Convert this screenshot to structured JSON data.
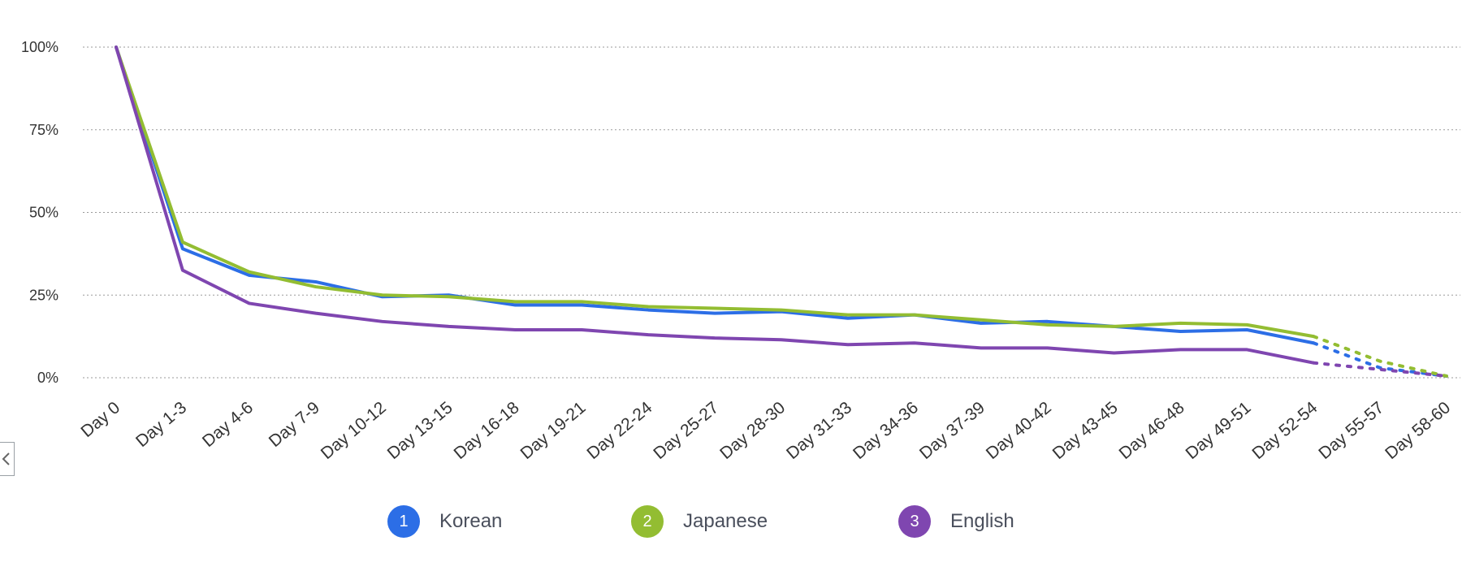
{
  "chart_data": {
    "type": "line",
    "title": "",
    "xlabel": "",
    "ylabel": "",
    "ylim": [
      0,
      100
    ],
    "yticks": [
      "0%",
      "25%",
      "50%",
      "75%",
      "100%"
    ],
    "ytick_values": [
      0,
      25,
      50,
      75,
      100
    ],
    "grid": "horizontal-dotted",
    "legend_position": "bottom",
    "categories": [
      "Day 0",
      "Day 1-3",
      "Day 4-6",
      "Day 7-9",
      "Day 10-12",
      "Day 13-15",
      "Day 16-18",
      "Day 19-21",
      "Day 22-24",
      "Day 25-27",
      "Day 28-30",
      "Day 31-33",
      "Day 34-36",
      "Day 37-39",
      "Day 40-42",
      "Day 43-45",
      "Day 46-48",
      "Day 49-51",
      "Day 52-54",
      "Day 55-57",
      "Day 58-60"
    ],
    "incomplete_from_index": 18,
    "series": [
      {
        "name": "Korean",
        "badge": "1",
        "color": "#2c6ee6",
        "values": [
          100,
          39,
          31,
          29,
          24.5,
          25,
          22,
          22,
          20.5,
          19.5,
          20,
          18,
          19,
          16.5,
          17,
          15.5,
          14,
          14.5,
          10.5,
          3,
          0.5
        ]
      },
      {
        "name": "Japanese",
        "badge": "2",
        "color": "#93bd32",
        "values": [
          100,
          41,
          32,
          27.5,
          25,
          24.5,
          23,
          23,
          21.5,
          21,
          20.5,
          19,
          19,
          17.5,
          16,
          15.5,
          16.5,
          16,
          12.5,
          5,
          0.5
        ]
      },
      {
        "name": "English",
        "badge": "3",
        "color": "#7f46b0",
        "values": [
          100,
          32.5,
          22.5,
          19.5,
          17,
          15.5,
          14.5,
          14.5,
          13,
          12,
          11.5,
          10,
          10.5,
          9,
          9,
          7.5,
          8.5,
          8.5,
          4.5,
          2.5,
          0.5
        ]
      }
    ]
  }
}
